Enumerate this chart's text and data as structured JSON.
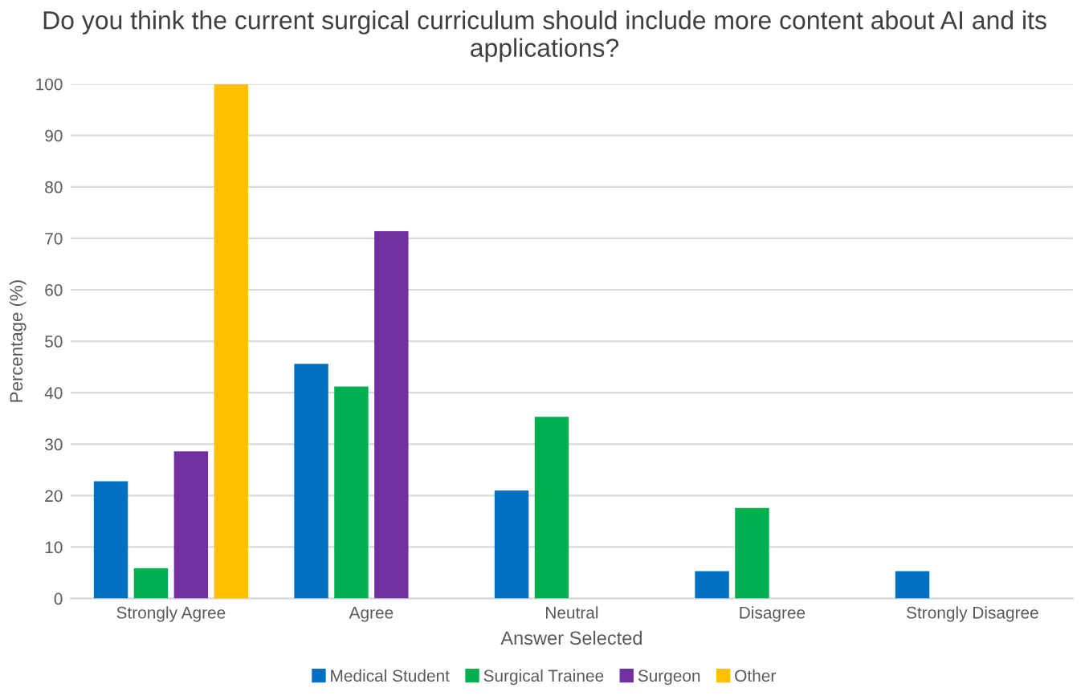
{
  "chart_data": {
    "type": "bar",
    "title": "Do you think the current surgical curriculum should include more content about AI and its applications?",
    "xlabel": "Answer Selected",
    "ylabel": "Percentage (%)",
    "categories": [
      "Strongly Agree",
      "Agree",
      "Neutral",
      "Disagree",
      "Strongly Disagree"
    ],
    "series": [
      {
        "name": "Medical Student",
        "color": "#0070c0",
        "values": [
          22.8,
          45.6,
          21.0,
          5.3,
          5.3
        ]
      },
      {
        "name": "Surgical Trainee",
        "color": "#00b050",
        "values": [
          5.9,
          41.2,
          35.3,
          17.6,
          0
        ]
      },
      {
        "name": "Surgeon",
        "color": "#7030a0",
        "values": [
          28.6,
          71.4,
          0,
          0,
          0
        ]
      },
      {
        "name": "Other",
        "color": "#ffc000",
        "values": [
          100,
          0,
          0,
          0,
          0
        ]
      }
    ],
    "ylim": [
      0,
      100
    ],
    "yticks": [
      0,
      10,
      20,
      30,
      40,
      50,
      60,
      70,
      80,
      90,
      100
    ],
    "grid": "y",
    "legend": "bottom"
  }
}
